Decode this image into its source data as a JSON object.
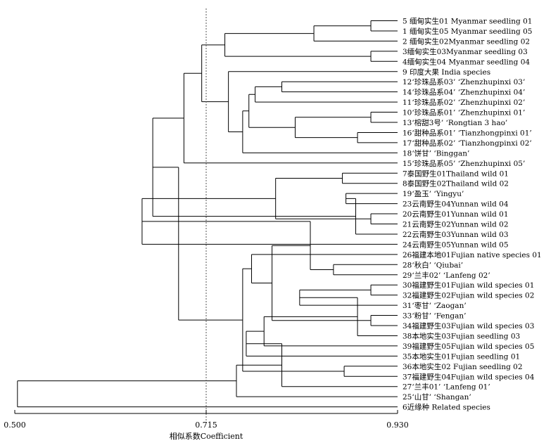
{
  "chart_data": {
    "type": "dendrogram",
    "xlabel": "相似系数Coefficient",
    "axis_min": 0.5,
    "axis_max": 0.93,
    "ticks": [
      {
        "value": 0.5,
        "label": "0.500"
      },
      {
        "value": 0.715,
        "label": "0.715"
      },
      {
        "value": 0.93,
        "label": "0.930"
      }
    ],
    "cut_value": 0.715,
    "leaves": [
      {
        "label": "5 缅甸实生01 Myanmar seedling 01"
      },
      {
        "label": "1 缅甸实生05 Myanmar seedling 05"
      },
      {
        "label": "2 缅甸实生02Myanmar seedling 02"
      },
      {
        "label": "3缅甸实生03Myanmar seedling 03"
      },
      {
        "label": "4缅甸实生04 Myanmar seedling 04"
      },
      {
        "label": "9 印度大果 India species"
      },
      {
        "label": "12‘珍珠品系03’ ‘Zhenzhupinxi 03’"
      },
      {
        "label": "14‘珍珠品系04’ ‘Zhenzhupinxi 04’"
      },
      {
        "label": "11‘珍珠品系02’ ‘Zhenzhupinxi 02’"
      },
      {
        "label": "10‘珍珠品系01’ ‘Zhenzhupinxi 01’"
      },
      {
        "label": "13‘榕甜3号’ ‘Rongtian 3 hao’"
      },
      {
        "label": "16‘甜种品系01’ ‘Tianzhongpinxi 01’"
      },
      {
        "label": "17‘甜种品系02’ ‘Tianzhongpinxi 02’"
      },
      {
        "label": "18‘饼甘’ ‘Binggan’"
      },
      {
        "label": "15‘珍珠品系05’ ‘Zhenzhupinxi 05’"
      },
      {
        "label": "7泰国野生01Thailand wild 01"
      },
      {
        "label": "8泰国野生02Thailand wild 02"
      },
      {
        "label": "19‘盈玉’ ‘Yingyu’"
      },
      {
        "label": "23云南野生04Yunnan wild 04"
      },
      {
        "label": "20云南野生01Yunnan wild 01"
      },
      {
        "label": "21云南野生02Yunnan wild 02"
      },
      {
        "label": "22云南野生03Yunnan wild 03"
      },
      {
        "label": "24云南野生05Yunnan wild 05"
      },
      {
        "label": "26福建本地01Fujian native species 01"
      },
      {
        "label": "28‘秋白’ ‘Qiubai’"
      },
      {
        "label": "29‘兰丰02’ ‘Lanfeng 02’"
      },
      {
        "label": "30福建野生01Fujian wild species 01"
      },
      {
        "label": "32福建野生02Fujian wild species 02"
      },
      {
        "label": "31‘枣甘’ ‘Zaogan’"
      },
      {
        "label": "33‘粉甘’ ‘Fengan’"
      },
      {
        "label": "34福建野生03Fujian wild species 03"
      },
      {
        "label": "38本地实生03Fujian seedling 03"
      },
      {
        "label": "39福建野生05Fujian wild species 05"
      },
      {
        "label": "35本地实生01Fujian seedling 01"
      },
      {
        "label": "36本地实生02 Fujian seedling 02"
      },
      {
        "label": "37福建野生04Fujian wild species 04"
      },
      {
        "label": "27‘兰丰01’ ‘Lanfeng 01’"
      },
      {
        "label": "25‘山甘’ ‘Shangan’"
      },
      {
        "label": "6近缘种 Related species"
      }
    ],
    "merges": [
      {
        "a": 0,
        "b": 1,
        "h": 0.9
      },
      {
        "a": 39,
        "b": 2,
        "h": 0.836
      },
      {
        "a": 3,
        "b": 4,
        "h": 0.9
      },
      {
        "a": 40,
        "b": 41,
        "h": 0.736
      },
      {
        "a": 6,
        "b": 7,
        "h": 0.8
      },
      {
        "a": 43,
        "b": 8,
        "h": 0.77
      },
      {
        "a": 9,
        "b": 10,
        "h": 0.9
      },
      {
        "a": 11,
        "b": 12,
        "h": 0.885
      },
      {
        "a": 45,
        "b": 46,
        "h": 0.815
      },
      {
        "a": 44,
        "b": 47,
        "h": 0.763
      },
      {
        "a": 48,
        "b": 13,
        "h": 0.756
      },
      {
        "a": 5,
        "b": 49,
        "h": 0.74
      },
      {
        "a": 42,
        "b": 50,
        "h": 0.71
      },
      {
        "a": 51,
        "b": 14,
        "h": 0.69
      },
      {
        "a": 15,
        "b": 16,
        "h": 0.868
      },
      {
        "a": 17,
        "b": 18,
        "h": 0.872
      },
      {
        "a": 19,
        "b": 20,
        "h": 0.9
      },
      {
        "a": 54,
        "b": 21,
        "h": 0.883
      },
      {
        "a": 53,
        "b": 55,
        "h": 0.793
      },
      {
        "a": 52,
        "b": 56,
        "h": 0.655
      },
      {
        "a": 57,
        "b": 22,
        "h": 0.643
      },
      {
        "a": 24,
        "b": 25,
        "h": 0.858
      },
      {
        "a": 26,
        "b": 27,
        "h": 0.9
      },
      {
        "a": 59,
        "b": 60,
        "h": 0.832
      },
      {
        "a": 61,
        "b": 28,
        "h": 0.82
      },
      {
        "a": 29,
        "b": 30,
        "h": 0.9
      },
      {
        "a": 63,
        "b": 31,
        "h": 0.885
      },
      {
        "a": 62,
        "b": 64,
        "h": 0.789
      },
      {
        "a": 65,
        "b": 32,
        "h": 0.78
      },
      {
        "a": 23,
        "b": 66,
        "h": 0.766
      },
      {
        "a": 67,
        "b": 33,
        "h": 0.76
      },
      {
        "a": 34,
        "b": 35,
        "h": 0.87
      },
      {
        "a": 69,
        "b": 36,
        "h": 0.8
      },
      {
        "a": 68,
        "b": 70,
        "h": 0.756
      },
      {
        "a": 71,
        "b": 37,
        "h": 0.749
      },
      {
        "a": 58,
        "b": 72,
        "h": 0.684
      },
      {
        "a": 73,
        "b": 38,
        "h": 0.503
      }
    ]
  }
}
